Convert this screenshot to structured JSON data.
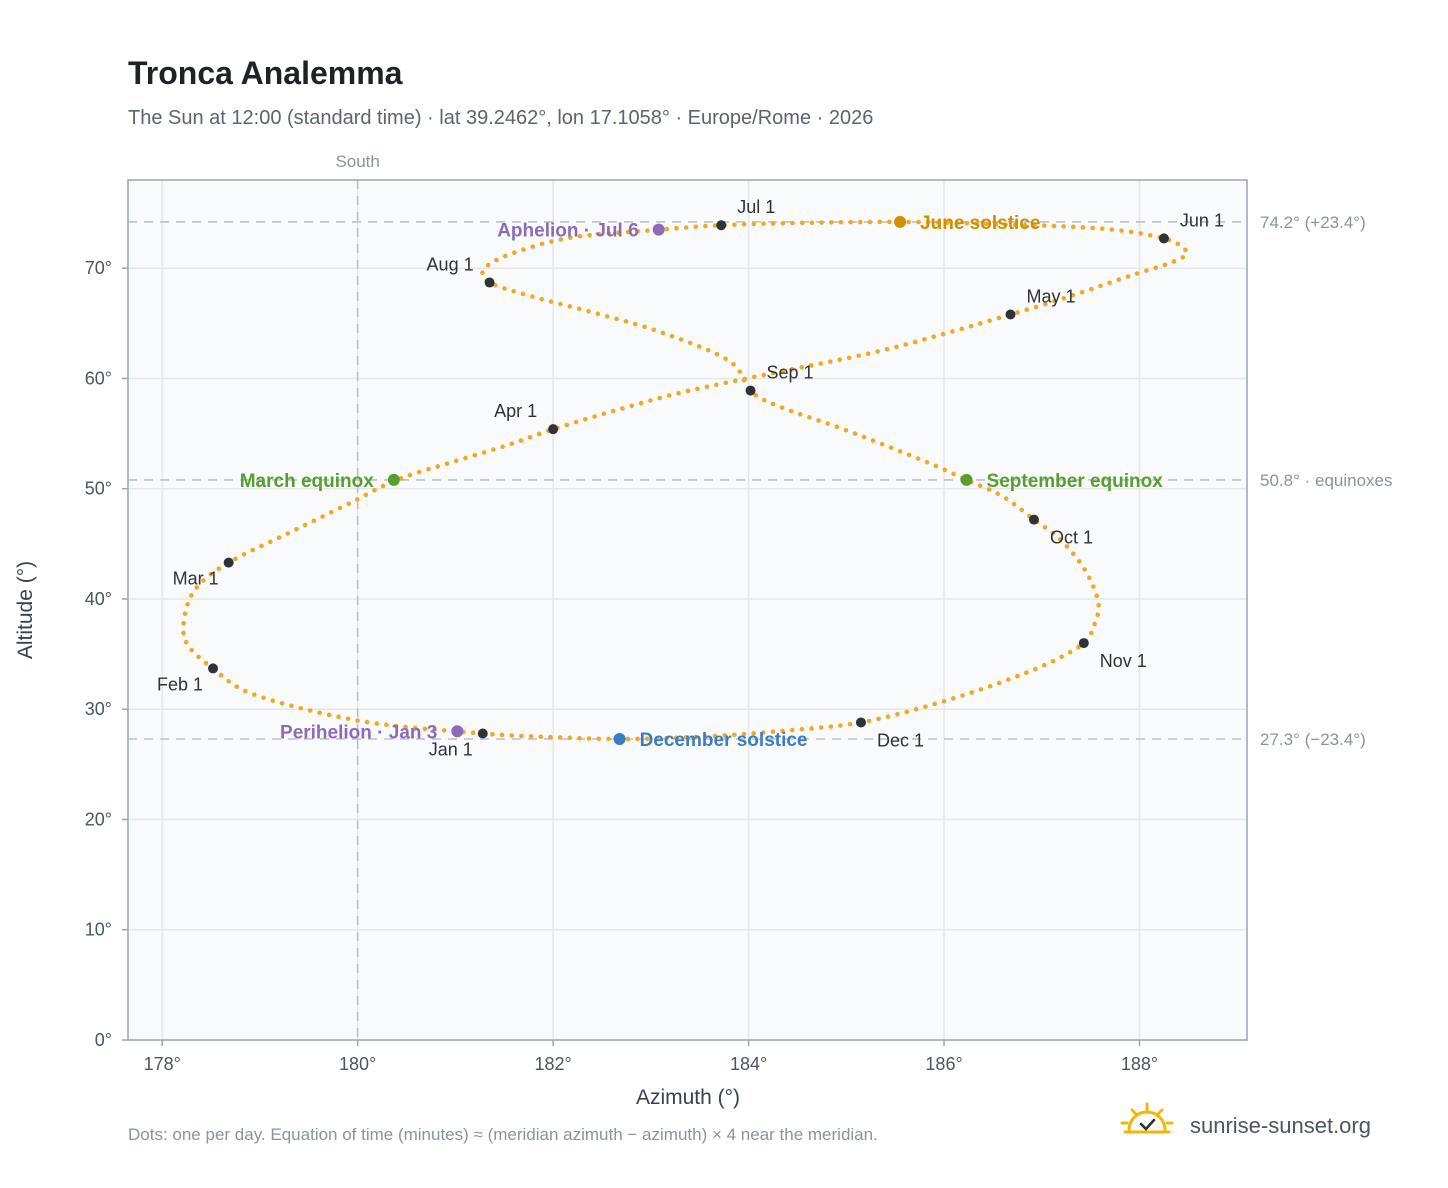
{
  "title": "Tronca Analemma",
  "subtitle": "The Sun at 12:00 (standard time) · lat 39.2462°, lon 17.1058° · Europe/Rome · 2026",
  "footnote": "Dots: one per day. Equation of time (minutes) ≈ (meridian azimuth − azimuth) × 4 near the meridian.",
  "brand": {
    "name": "sunrise-sunset.org",
    "logo_icon": "sun-check-icon"
  },
  "colors": {
    "path": "#f5a623",
    "month_marker": "#2f3338",
    "aphelion_perihelion": "#8e6bb8",
    "june_solstice": "#d18f00",
    "december_solstice": "#3a7dc2",
    "equinox": "#5a9e2f",
    "reference_line": "#b9c2cc",
    "plot_bg": "#f8fafc",
    "grid": "#e3e8ee",
    "frame": "#9aa4b2"
  },
  "chart_data": {
    "type": "scatter",
    "title": "Tronca Analemma",
    "subtitle": "The Sun at 12:00 (standard time) · lat 39.2462°, lon 17.1058° · Europe/Rome · 2026",
    "xlabel": "Azimuth (°)",
    "ylabel": "Altitude (°)",
    "xlim": [
      177.65,
      189.1
    ],
    "ylim": [
      0,
      78
    ],
    "xticks": [
      178,
      180,
      182,
      184,
      186,
      188
    ],
    "xtick_labels": [
      "178°",
      "180°",
      "182°",
      "184°",
      "186°",
      "188°"
    ],
    "yticks": [
      0,
      10,
      20,
      30,
      40,
      50,
      60,
      70
    ],
    "ytick_labels": [
      "0°",
      "10°",
      "20°",
      "30°",
      "40°",
      "50°",
      "60°",
      "70°"
    ],
    "grid": true,
    "meridian": {
      "azimuth": 180,
      "label": "South"
    },
    "reference_lines": [
      {
        "altitude": 74.2,
        "label": "74.2° (+23.4°)"
      },
      {
        "altitude": 50.8,
        "label": "50.8° · equinoxes"
      },
      {
        "altitude": 27.3,
        "label": "27.3° (−23.4°)"
      }
    ],
    "series": [
      {
        "kind": "daily_path",
        "points": [
          [
            181.28,
            27.8
          ],
          [
            180.05,
            28.9
          ],
          [
            178.95,
            31.3
          ],
          [
            178.52,
            33.7
          ],
          [
            178.25,
            36.0
          ],
          [
            178.23,
            38.5
          ],
          [
            178.35,
            41.0
          ],
          [
            178.68,
            43.3
          ],
          [
            179.3,
            46.0
          ],
          [
            179.9,
            48.6
          ],
          [
            180.4,
            50.8
          ],
          [
            181.0,
            52.5
          ],
          [
            181.55,
            54.0
          ],
          [
            182.0,
            55.4
          ],
          [
            182.6,
            57.0
          ],
          [
            183.3,
            58.7
          ],
          [
            184.2,
            60.4
          ],
          [
            185.3,
            62.4
          ],
          [
            186.1,
            64.3
          ],
          [
            186.68,
            65.8
          ],
          [
            187.2,
            67.2
          ],
          [
            187.9,
            69.3
          ],
          [
            188.35,
            70.6
          ],
          [
            188.48,
            71.5
          ],
          [
            188.25,
            72.7
          ],
          [
            187.6,
            73.6
          ],
          [
            186.5,
            74.0
          ],
          [
            185.55,
            74.2
          ],
          [
            184.5,
            74.1
          ],
          [
            183.72,
            73.9
          ],
          [
            183.1,
            73.5
          ],
          [
            182.2,
            72.8
          ],
          [
            181.6,
            71.4
          ],
          [
            181.3,
            70.0
          ],
          [
            181.35,
            68.7
          ],
          [
            181.8,
            67.4
          ],
          [
            182.4,
            66.0
          ],
          [
            183.1,
            64.2
          ],
          [
            183.8,
            61.6
          ],
          [
            184.02,
            58.9
          ],
          [
            184.3,
            57.5
          ],
          [
            185.0,
            55.3
          ],
          [
            185.8,
            52.5
          ],
          [
            186.23,
            50.8
          ],
          [
            186.6,
            49.3
          ],
          [
            186.92,
            47.2
          ],
          [
            187.2,
            45.3
          ],
          [
            187.45,
            42.5
          ],
          [
            187.58,
            39.6
          ],
          [
            187.53,
            37.5
          ],
          [
            187.43,
            36.0
          ],
          [
            187.1,
            34.3
          ],
          [
            186.6,
            32.5
          ],
          [
            185.95,
            30.6
          ],
          [
            185.15,
            28.8
          ],
          [
            184.3,
            28.0
          ],
          [
            183.5,
            27.5
          ],
          [
            182.68,
            27.3
          ],
          [
            181.9,
            27.5
          ],
          [
            181.28,
            27.8
          ]
        ]
      }
    ],
    "month_markers": [
      {
        "label": "Jan 1",
        "x": 181.28,
        "y": 27.8,
        "anchor": "below-left"
      },
      {
        "label": "Feb 1",
        "x": 178.52,
        "y": 33.7,
        "anchor": "below-left"
      },
      {
        "label": "Mar 1",
        "x": 178.68,
        "y": 43.3,
        "anchor": "below-left"
      },
      {
        "label": "Apr 1",
        "x": 182.0,
        "y": 55.4,
        "anchor": "above-left"
      },
      {
        "label": "May 1",
        "x": 186.68,
        "y": 65.8,
        "anchor": "above-right"
      },
      {
        "label": "Jun 1",
        "x": 188.25,
        "y": 72.7,
        "anchor": "above-right"
      },
      {
        "label": "Jul 1",
        "x": 183.72,
        "y": 73.9,
        "anchor": "above-right"
      },
      {
        "label": "Aug 1",
        "x": 181.35,
        "y": 68.7,
        "anchor": "above-left"
      },
      {
        "label": "Sep 1",
        "x": 184.02,
        "y": 58.9,
        "anchor": "above-right"
      },
      {
        "label": "Oct 1",
        "x": 186.92,
        "y": 47.2,
        "anchor": "below-right"
      },
      {
        "label": "Nov 1",
        "x": 187.43,
        "y": 36.0,
        "anchor": "below-right"
      },
      {
        "label": "Dec 1",
        "x": 185.15,
        "y": 28.8,
        "anchor": "below-right"
      }
    ],
    "events": [
      {
        "label": "Aphelion · Jul 6",
        "x": 183.08,
        "y": 73.5,
        "color_key": "aphelion_perihelion",
        "anchor": "left"
      },
      {
        "label": "June solstice",
        "x": 185.55,
        "y": 74.2,
        "color_key": "june_solstice",
        "anchor": "right"
      },
      {
        "label": "March equinox",
        "x": 180.37,
        "y": 50.8,
        "color_key": "equinox",
        "anchor": "left"
      },
      {
        "label": "September equinox",
        "x": 186.23,
        "y": 50.8,
        "color_key": "equinox",
        "anchor": "right"
      },
      {
        "label": "Perihelion · Jan 3",
        "x": 181.02,
        "y": 28.0,
        "color_key": "aphelion_perihelion",
        "anchor": "left"
      },
      {
        "label": "December solstice",
        "x": 182.68,
        "y": 27.3,
        "color_key": "december_solstice",
        "anchor": "right"
      }
    ]
  }
}
